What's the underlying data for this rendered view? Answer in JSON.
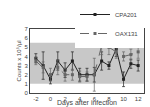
{
  "chart_data": {
    "type": "line",
    "xlabel": "Days after infection",
    "ylabel": "Counts x 10⁵/µl",
    "x": [
      -2,
      -1,
      0,
      1,
      2,
      3,
      4,
      5,
      6,
      7,
      8,
      9,
      10,
      11,
      12
    ],
    "series": [
      {
        "name": "CPA201",
        "color": "#222222",
        "marker": "square",
        "line_style": "solid",
        "values": [
          3.8,
          3.0,
          1.5,
          3.5,
          2.5,
          3.5,
          2.0,
          2.0,
          2.0,
          3.5,
          3.0,
          4.8,
          1.5,
          3.2,
          3.0
        ],
        "errors": [
          0.5,
          1.5,
          0.5,
          1.0,
          0.8,
          1.0,
          0.7,
          0.7,
          0.8,
          1.0,
          0.4,
          0.8,
          0.8,
          0.5,
          0.6
        ]
      },
      {
        "name": "OAX131",
        "color": "#666666",
        "marker": "square",
        "line_style": "dashed",
        "values": [
          3.5,
          2.8,
          2.0,
          2.8,
          2.0,
          2.0,
          1.8,
          1.8,
          2.0,
          5.2,
          5.0,
          4.5,
          4.0,
          4.2,
          4.5
        ],
        "errors": [
          0.4,
          0.6,
          0.7,
          0.8,
          0.7,
          0.6,
          0.6,
          0.5,
          1.8,
          1.0,
          0.8,
          0.7,
          0.5,
          0.6,
          0.7
        ]
      }
    ],
    "xlim": [
      -2.8,
      12.8
    ],
    "xticks": [
      -2,
      0,
      2,
      4,
      6,
      8,
      10,
      12
    ],
    "ylim": [
      0,
      7
    ],
    "yticks": [
      0,
      1,
      2,
      3,
      4,
      5,
      6,
      7
    ],
    "band": {
      "y": [
        1.0,
        5.5
      ],
      "color": "#c8c8c8"
    },
    "grid": false,
    "legend": "top"
  }
}
